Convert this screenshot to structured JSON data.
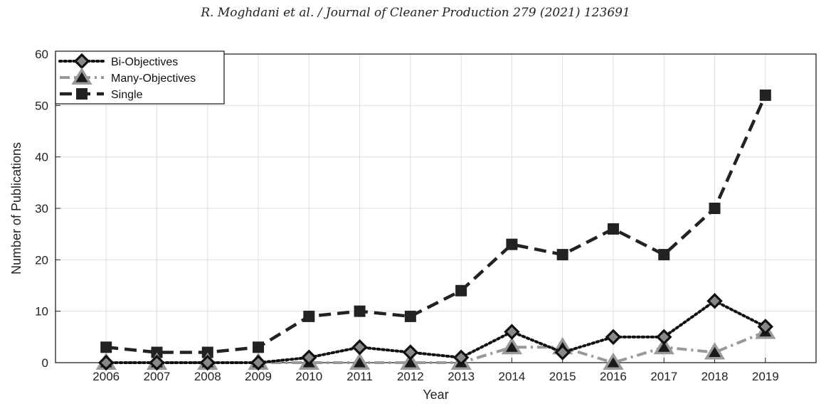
{
  "header": {
    "citation": "R. Moghdani et al. / Journal of Cleaner Production 279 (2021) 123691"
  },
  "chart_data": {
    "type": "line",
    "title": "",
    "xlabel": "Year",
    "ylabel": "Number of Publications",
    "categories": [
      "2006",
      "2007",
      "2008",
      "2009",
      "2010",
      "2011",
      "2012",
      "2013",
      "2014",
      "2015",
      "2016",
      "2017",
      "2018",
      "2019"
    ],
    "ylim": [
      0,
      60
    ],
    "yticks": [
      0,
      10,
      20,
      30,
      40,
      50,
      60
    ],
    "grid": true,
    "legend_position": "top-left",
    "series": [
      {
        "name": "Bi-Objectives",
        "values": [
          0,
          0,
          0,
          0,
          1,
          3,
          2,
          1,
          6,
          2,
          5,
          5,
          12,
          7
        ],
        "color": "#111111",
        "line": "dotted",
        "marker": "diamond"
      },
      {
        "name": "Many-Objectives",
        "values": [
          0,
          0,
          0,
          0,
          0,
          0,
          0,
          0,
          3,
          3,
          0,
          3,
          2,
          6
        ],
        "color": "#999999",
        "line": "dash-dot",
        "marker": "triangle"
      },
      {
        "name": "Single",
        "values": [
          3,
          2,
          2,
          3,
          9,
          10,
          9,
          14,
          23,
          21,
          26,
          21,
          30,
          52
        ],
        "color": "#222222",
        "line": "dashed",
        "marker": "square"
      }
    ]
  }
}
